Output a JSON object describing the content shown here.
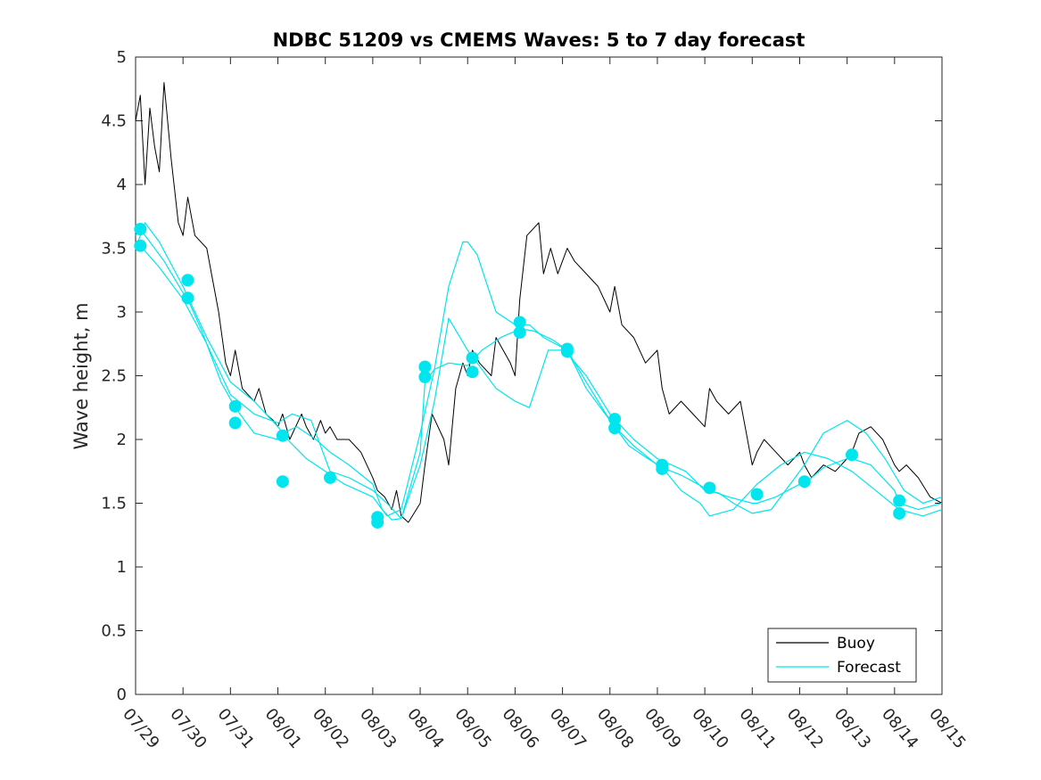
{
  "chart_data": {
    "type": "line",
    "title": "NDBC 51209 vs CMEMS Waves: 5 to 7 day forecast",
    "xlabel": "",
    "ylabel": "Wave height, m",
    "xlim": [
      0,
      17
    ],
    "ylim": [
      0,
      5
    ],
    "yticks": [
      0,
      0.5,
      1,
      1.5,
      2,
      2.5,
      3,
      3.5,
      4,
      4.5,
      5
    ],
    "x_tick_values": [
      0,
      1,
      2,
      3,
      4,
      5,
      6,
      7,
      8,
      9,
      10,
      11,
      12,
      13,
      14,
      15,
      16,
      17
    ],
    "x_tick_labels": [
      "07/29",
      "07/30",
      "07/31",
      "08/01",
      "08/02",
      "08/03",
      "08/04",
      "08/05",
      "08/06",
      "08/07",
      "08/08",
      "08/09",
      "08/10",
      "08/11",
      "08/12",
      "08/13",
      "08/14",
      "08/15"
    ],
    "x_units": "days since 07/29",
    "grid": false,
    "legend": {
      "position": "bottom-right",
      "entries": [
        "Buoy",
        "Forecast"
      ]
    },
    "colors": {
      "buoy": "#000000",
      "forecast": "#00e5ee"
    },
    "series": [
      {
        "name": "Buoy",
        "color": "#000000",
        "x": [
          0.0,
          0.1,
          0.2,
          0.3,
          0.4,
          0.5,
          0.6,
          0.75,
          0.9,
          1.0,
          1.1,
          1.25,
          1.5,
          1.6,
          1.75,
          1.9,
          2.0,
          2.1,
          2.25,
          2.5,
          2.6,
          2.75,
          2.9,
          3.0,
          3.1,
          3.25,
          3.5,
          3.6,
          3.75,
          3.9,
          4.0,
          4.1,
          4.25,
          4.5,
          4.75,
          5.0,
          5.1,
          5.25,
          5.4,
          5.5,
          5.6,
          5.75,
          6.0,
          6.1,
          6.25,
          6.5,
          6.6,
          6.75,
          6.9,
          7.0,
          7.1,
          7.25,
          7.5,
          7.6,
          7.75,
          7.9,
          8.0,
          8.1,
          8.25,
          8.5,
          8.6,
          8.75,
          8.9,
          9.0,
          9.1,
          9.25,
          9.5,
          9.75,
          10.0,
          10.1,
          10.25,
          10.5,
          10.75,
          11.0,
          11.1,
          11.25,
          11.5,
          11.75,
          12.0,
          12.1,
          12.25,
          12.5,
          12.75,
          13.0,
          13.1,
          13.25,
          13.5,
          13.75,
          14.0,
          14.1,
          14.25,
          14.5,
          14.75,
          15.0,
          15.1,
          15.25,
          15.5,
          15.75,
          16.0,
          16.1,
          16.25,
          16.5,
          16.75,
          17.0
        ],
        "y": [
          4.5,
          4.7,
          4.0,
          4.6,
          4.3,
          4.1,
          4.8,
          4.2,
          3.7,
          3.6,
          3.9,
          3.6,
          3.5,
          3.3,
          3.0,
          2.6,
          2.5,
          2.7,
          2.4,
          2.3,
          2.4,
          2.2,
          2.15,
          2.1,
          2.2,
          2.0,
          2.2,
          2.1,
          2.0,
          2.15,
          2.05,
          2.1,
          2.0,
          2.0,
          1.9,
          1.7,
          1.6,
          1.55,
          1.45,
          1.6,
          1.4,
          1.35,
          1.5,
          1.8,
          2.2,
          2.0,
          1.8,
          2.4,
          2.6,
          2.5,
          2.7,
          2.6,
          2.5,
          2.8,
          2.7,
          2.6,
          2.5,
          3.1,
          3.6,
          3.7,
          3.3,
          3.5,
          3.3,
          3.4,
          3.5,
          3.4,
          3.3,
          3.2,
          3.0,
          3.2,
          2.9,
          2.8,
          2.6,
          2.7,
          2.4,
          2.2,
          2.3,
          2.2,
          2.1,
          2.4,
          2.3,
          2.2,
          2.3,
          1.8,
          1.9,
          2.0,
          1.9,
          1.8,
          1.9,
          1.8,
          1.7,
          1.8,
          1.75,
          1.85,
          1.9,
          2.05,
          2.1,
          2.0,
          1.8,
          1.75,
          1.8,
          1.7,
          1.55,
          1.5
        ]
      },
      {
        "name": "Forecast",
        "color": "#00e5ee",
        "x": [
          0.0,
          0.1,
          0.3,
          0.6,
          1.0,
          1.1,
          1.4,
          1.8,
          2.1,
          2.3,
          2.5,
          3.0,
          3.1,
          3.4,
          3.8,
          4.1,
          4.5,
          5.0,
          5.1,
          5.2,
          5.4,
          5.6,
          6.0,
          6.1,
          6.3,
          6.6,
          7.0,
          7.1,
          7.3,
          7.7,
          8.0,
          8.1,
          8.4,
          8.8,
          9.1,
          9.5,
          10.0,
          10.1,
          10.5,
          11.0,
          11.1,
          11.5,
          12.0,
          12.1,
          12.5,
          13.0,
          13.1,
          13.5,
          14.0,
          14.1,
          14.5,
          15.0,
          15.1,
          15.5,
          16.0,
          16.1,
          16.5,
          17.0
        ],
        "y": [
          3.6,
          3.65,
          3.55,
          3.4,
          3.15,
          3.1,
          2.85,
          2.45,
          2.25,
          2.15,
          2.05,
          2.0,
          2.05,
          2.1,
          2.0,
          1.9,
          1.8,
          1.65,
          1.55,
          1.45,
          1.37,
          1.38,
          1.9,
          2.45,
          2.55,
          2.6,
          2.58,
          2.62,
          2.7,
          2.8,
          2.85,
          2.87,
          2.85,
          2.78,
          2.7,
          2.45,
          2.15,
          2.1,
          1.95,
          1.8,
          1.78,
          1.72,
          1.62,
          1.6,
          1.55,
          1.5,
          1.5,
          1.55,
          1.65,
          1.65,
          1.78,
          1.85,
          1.85,
          1.8,
          1.6,
          1.5,
          1.45,
          1.5
        ]
      },
      {
        "name": "",
        "color": "#00e5ee",
        "x": [
          0.0,
          0.2,
          0.5,
          1.0,
          1.5,
          2.0,
          2.5,
          3.0,
          3.2,
          3.6,
          4.0,
          4.4,
          5.0,
          5.3,
          5.6,
          6.0,
          6.3,
          6.6,
          6.9,
          7.0,
          7.2,
          7.6,
          8.0,
          8.3,
          8.6,
          9.0,
          9.5,
          10.0,
          10.5,
          11.0,
          11.3,
          11.6,
          12.0,
          12.3,
          12.6,
          13.0,
          13.4,
          13.8,
          14.1,
          14.5,
          15.0,
          15.4,
          15.8,
          16.2,
          16.6,
          17.0
        ],
        "y": [
          3.5,
          3.7,
          3.55,
          3.2,
          2.8,
          2.45,
          2.3,
          2.1,
          2.0,
          1.85,
          1.75,
          1.65,
          1.55,
          1.4,
          1.45,
          2.05,
          2.55,
          3.2,
          3.55,
          3.55,
          3.45,
          3.0,
          2.9,
          2.9,
          2.8,
          2.72,
          2.5,
          2.2,
          2.0,
          1.85,
          1.8,
          1.75,
          1.6,
          1.58,
          1.5,
          1.42,
          1.45,
          1.65,
          1.8,
          2.05,
          2.15,
          2.05,
          1.85,
          1.6,
          1.5,
          1.55
        ]
      },
      {
        "name": "",
        "color": "#00e5ee",
        "x": [
          0.1,
          0.5,
          1.0,
          1.5,
          2.0,
          2.5,
          3.0,
          3.3,
          3.7,
          4.1,
          4.5,
          5.0,
          5.3,
          5.6,
          6.0,
          6.3,
          6.6,
          7.0,
          7.3,
          7.6,
          8.0,
          8.3,
          8.7,
          9.1,
          9.5,
          10.0,
          10.4,
          10.8,
          11.1,
          11.5,
          11.9,
          12.1,
          12.6,
          13.1,
          13.6,
          14.1,
          14.6,
          15.1,
          15.6,
          16.1,
          16.6,
          17.0
        ],
        "y": [
          3.52,
          3.35,
          3.1,
          2.75,
          2.35,
          2.2,
          2.13,
          2.2,
          2.15,
          1.75,
          1.7,
          1.6,
          1.5,
          1.38,
          1.8,
          2.3,
          2.95,
          2.7,
          2.55,
          2.4,
          2.3,
          2.25,
          2.7,
          2.7,
          2.4,
          2.15,
          1.95,
          1.85,
          1.78,
          1.6,
          1.5,
          1.4,
          1.45,
          1.65,
          1.8,
          1.9,
          1.85,
          1.75,
          1.6,
          1.45,
          1.4,
          1.45
        ]
      }
    ],
    "markers": {
      "name": "",
      "color": "#00e5ee",
      "x": [
        0.1,
        0.1,
        1.1,
        1.1,
        2.1,
        2.1,
        3.1,
        3.1,
        4.1,
        5.1,
        5.1,
        6.1,
        6.1,
        7.1,
        7.1,
        8.1,
        8.1,
        9.1,
        9.1,
        10.1,
        10.1,
        11.1,
        11.1,
        12.1,
        13.1,
        14.1,
        15.1,
        16.1,
        16.1
      ],
      "y": [
        3.65,
        3.52,
        3.25,
        3.11,
        2.26,
        2.13,
        2.03,
        1.67,
        1.7,
        1.39,
        1.35,
        2.57,
        2.49,
        2.64,
        2.53,
        2.92,
        2.84,
        2.71,
        2.69,
        2.16,
        2.09,
        1.8,
        1.77,
        1.62,
        1.57,
        1.67,
        1.88,
        1.52,
        1.42
      ]
    }
  }
}
